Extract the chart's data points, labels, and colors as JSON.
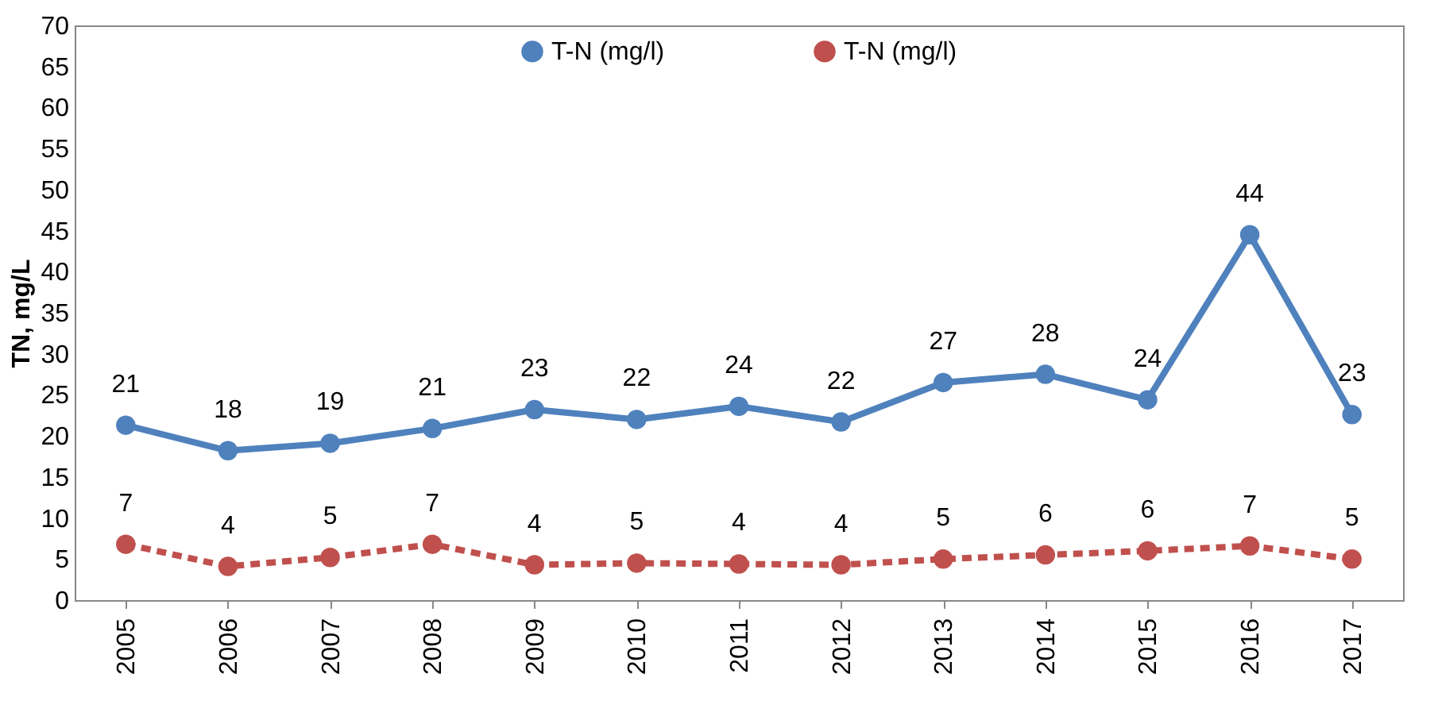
{
  "chart_data": {
    "type": "line",
    "ylabel": "TN, mg/L",
    "categories": [
      "2005",
      "2006",
      "2007",
      "2008",
      "2009",
      "2010",
      "2011",
      "2012",
      "2013",
      "2014",
      "2015",
      "2016",
      "2017"
    ],
    "series": [
      {
        "name": "T-N (mg/l)",
        "color": "#4f81bd",
        "line_style": "solid",
        "values": [
          21.3,
          18.2,
          19.1,
          20.9,
          23.2,
          22.0,
          23.6,
          21.7,
          26.5,
          27.5,
          24.4,
          44.5,
          22.6
        ],
        "value_labels": [
          "21",
          "18",
          "19",
          "21",
          "23",
          "22",
          "24",
          "22",
          "27",
          "28",
          "24",
          "44",
          "23"
        ]
      },
      {
        "name": "T-N (mg/l)",
        "color": "#c0504d",
        "line_style": "dashed",
        "values": [
          6.8,
          4.1,
          5.2,
          6.8,
          4.3,
          4.5,
          4.4,
          4.3,
          5.0,
          5.5,
          6.0,
          6.6,
          5.0
        ],
        "value_labels": [
          "7",
          "4",
          "5",
          "7",
          "4",
          "5",
          "4",
          "4",
          "5",
          "6",
          "6",
          "7",
          "5"
        ]
      }
    ],
    "ylim": [
      0,
      70
    ],
    "yticks": [
      0,
      5,
      10,
      15,
      20,
      25,
      30,
      35,
      40,
      45,
      50,
      55,
      60,
      65,
      70
    ],
    "grid": false,
    "legend": "top",
    "marker": "circle"
  }
}
